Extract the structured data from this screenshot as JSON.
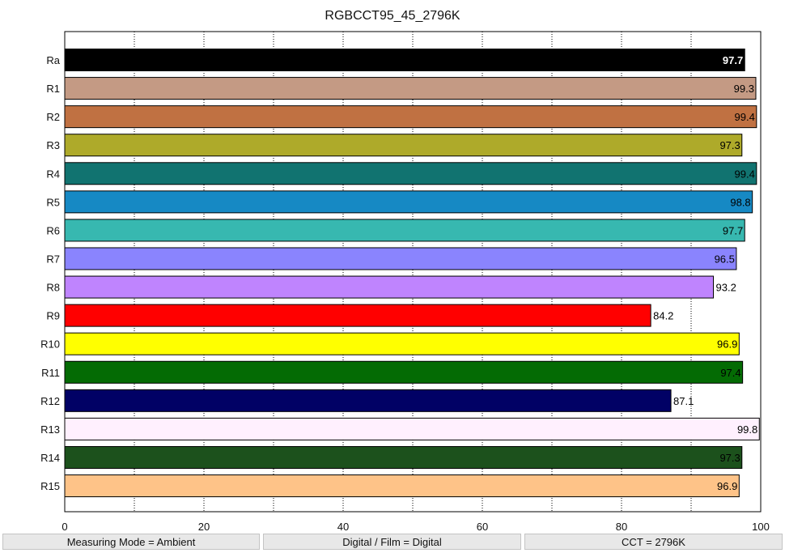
{
  "chart_data": {
    "type": "bar",
    "orientation": "horizontal",
    "title": "RGBCCT95_45_2796K",
    "xlim": [
      0,
      100
    ],
    "x_ticks": [
      0,
      20,
      40,
      60,
      80,
      100
    ],
    "grid": "vertical dotted",
    "categories": [
      "Ra",
      "R1",
      "R2",
      "R3",
      "R4",
      "R5",
      "R6",
      "R7",
      "R8",
      "R9",
      "R10",
      "R11",
      "R12",
      "R13",
      "R14",
      "R15"
    ],
    "values": [
      97.7,
      99.3,
      99.4,
      97.3,
      99.4,
      98.8,
      97.7,
      96.5,
      93.2,
      84.2,
      96.9,
      97.4,
      87.1,
      99.8,
      97.3,
      96.9
    ],
    "value_labels": [
      "97.7",
      "99.3",
      "99.4",
      "97.3",
      "99.4",
      "98.8",
      "97.7",
      "96.5",
      "93.2",
      "84.2",
      "96.9",
      "97.4",
      "87.1",
      "99.8",
      "97.3",
      "96.9"
    ],
    "colors": [
      "#000000",
      "#c49a84",
      "#c07142",
      "#aeaa2a",
      "#117370",
      "#1689c4",
      "#37b8b0",
      "#8a84fe",
      "#bf84fe",
      "#ff0000",
      "#ffff00",
      "#046b04",
      "#010165",
      "#fff0fe",
      "#1c511c",
      "#fec388"
    ],
    "label_colors": [
      "#ffffff",
      "#000000",
      "#000000",
      "#000000",
      "#000000",
      "#000000",
      "#000000",
      "#000000",
      "#000000",
      "#000000",
      "#000000",
      "#000000",
      "#000000",
      "#000000",
      "#000000",
      "#000000"
    ]
  },
  "footer": {
    "measuring_mode": "Measuring Mode = Ambient",
    "digital_film": "Digital / Film = Digital",
    "cct": "CCT = 2796K"
  }
}
